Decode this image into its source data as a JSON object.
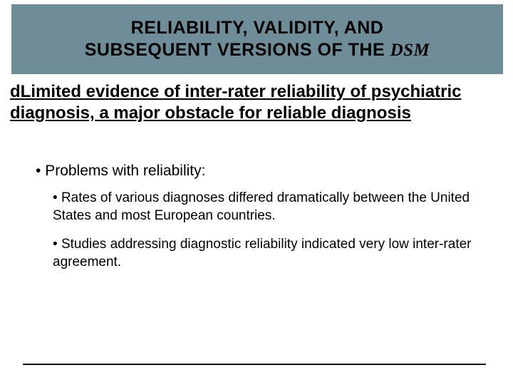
{
  "colors": {
    "band_bg": "#6e8d99",
    "text": "#000000",
    "page_bg": "#ffffff",
    "rule": "#000000"
  },
  "typography": {
    "title_fontsize_pt": 19,
    "lead_fontsize_pt": 18,
    "subhead_fontsize_pt": 16,
    "subitem_fontsize_pt": 14,
    "font_family": "Arial"
  },
  "title": {
    "line1": "RELIABILITY, VALIDITY, AND",
    "line2_prefix": "SUBSEQUENT VERSIONS OF THE ",
    "line2_italic": "DSM"
  },
  "lead": {
    "bullet_glyph": "d",
    "text": "Limited evidence of inter-rater reliability of psychiatric diagnosis, a major obstacle for reliable diagnosis"
  },
  "sub": {
    "heading_bullet": "•",
    "heading_text": "Problems with reliability:",
    "items": [
      {
        "bullet": "•",
        "text": "Rates of various diagnoses differed dramatically between the United States and most European countries."
      },
      {
        "bullet": "•",
        "text": "Studies addressing diagnostic reliability indicated very low inter-rater agreement."
      }
    ]
  }
}
